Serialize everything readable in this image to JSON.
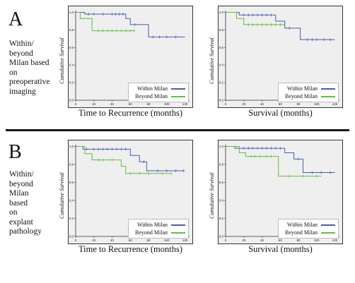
{
  "figure": {
    "panel_a_letter": "A",
    "panel_b_letter": "B",
    "row_a_label": "Within/\nbeyond\nMilan based\non\npreoperative\nimaging",
    "row_b_label": "Within/\nbeyond\nMilan\nbased\non\nexplant\npathology"
  },
  "colors": {
    "within": "#4a5bb0",
    "beyond": "#5fbf3f"
  },
  "chart_data": [
    {
      "type": "line",
      "step": true,
      "ylabel": "Cumulative Survival",
      "xlabel": "Time to Recurrence  (months)",
      "xticks": [
        "0",
        "20",
        "40",
        "60",
        "80",
        "100",
        "120"
      ],
      "yticks": [
        "0.0",
        "0.2",
        "0.4",
        "0.6",
        "0.8",
        "1.0"
      ],
      "xlim": [
        0,
        125
      ],
      "ylim": [
        0,
        1.02
      ],
      "legend_position": "bottom-right",
      "series": [
        {
          "name": "Within Milan",
          "color_key": "within",
          "steps": [
            [
              0,
              1.0
            ],
            [
              10,
              0.98
            ],
            [
              55,
              0.93
            ],
            [
              60,
              0.86
            ],
            [
              80,
              0.72
            ],
            [
              120,
              0.72
            ]
          ],
          "censors": [
            [
              14,
              0.98
            ],
            [
              20,
              0.98
            ],
            [
              30,
              0.98
            ],
            [
              40,
              0.98
            ],
            [
              44,
              0.98
            ],
            [
              48,
              0.98
            ],
            [
              52,
              0.98
            ],
            [
              65,
              0.86
            ],
            [
              85,
              0.72
            ],
            [
              92,
              0.72
            ],
            [
              100,
              0.72
            ],
            [
              110,
              0.72
            ]
          ]
        },
        {
          "name": "Beyond Milan",
          "color_key": "beyond",
          "steps": [
            [
              0,
              1.0
            ],
            [
              5,
              0.93
            ],
            [
              18,
              0.79
            ],
            [
              65,
              0.79
            ]
          ],
          "censors": [
            [
              25,
              0.79
            ],
            [
              30,
              0.79
            ],
            [
              35,
              0.79
            ],
            [
              40,
              0.79
            ],
            [
              45,
              0.79
            ],
            [
              50,
              0.79
            ],
            [
              55,
              0.79
            ],
            [
              60,
              0.79
            ],
            [
              64,
              0.79
            ]
          ]
        }
      ]
    },
    {
      "type": "line",
      "step": true,
      "ylabel": "Cumulative Survival",
      "xlabel": "Survival  (months)",
      "xticks": [
        "0",
        "20",
        "40",
        "60",
        "80",
        "100",
        "120"
      ],
      "yticks": [
        "0.0",
        "0.2",
        "0.4",
        "0.6",
        "0.8",
        "1.0"
      ],
      "xlim": [
        0,
        125
      ],
      "ylim": [
        0,
        1.02
      ],
      "legend_position": "bottom-right",
      "series": [
        {
          "name": "Within Milan",
          "color_key": "within",
          "steps": [
            [
              0,
              1.0
            ],
            [
              15,
              0.97
            ],
            [
              55,
              0.9
            ],
            [
              65,
              0.82
            ],
            [
              82,
              0.69
            ],
            [
              120,
              0.69
            ]
          ],
          "censors": [
            [
              20,
              0.97
            ],
            [
              25,
              0.97
            ],
            [
              30,
              0.97
            ],
            [
              35,
              0.97
            ],
            [
              40,
              0.97
            ],
            [
              45,
              0.97
            ],
            [
              50,
              0.97
            ],
            [
              70,
              0.82
            ],
            [
              90,
              0.69
            ],
            [
              95,
              0.69
            ],
            [
              100,
              0.69
            ],
            [
              108,
              0.69
            ],
            [
              115,
              0.69
            ]
          ]
        },
        {
          "name": "Beyond Milan",
          "color_key": "beyond",
          "steps": [
            [
              0,
              1.0
            ],
            [
              12,
              0.93
            ],
            [
              20,
              0.86
            ],
            [
              65,
              0.86
            ]
          ],
          "censors": [
            [
              25,
              0.86
            ],
            [
              30,
              0.86
            ],
            [
              35,
              0.86
            ],
            [
              40,
              0.86
            ],
            [
              45,
              0.86
            ],
            [
              50,
              0.86
            ],
            [
              55,
              0.86
            ],
            [
              60,
              0.86
            ]
          ]
        }
      ]
    },
    {
      "type": "line",
      "step": true,
      "ylabel": "Cumulative Survival",
      "xlabel": "Time to Recurrence  (months)",
      "xticks": [
        "0",
        "20",
        "40",
        "60",
        "80",
        "100",
        "120"
      ],
      "yticks": [
        "0.0",
        "0.2",
        "0.4",
        "0.6",
        "0.8",
        "1.0"
      ],
      "xlim": [
        0,
        125
      ],
      "ylim": [
        0,
        1.02
      ],
      "legend_position": "bottom-right",
      "series": [
        {
          "name": "Within Milan",
          "color_key": "within",
          "steps": [
            [
              0,
              1.0
            ],
            [
              8,
              0.97
            ],
            [
              60,
              0.9
            ],
            [
              70,
              0.83
            ],
            [
              78,
              0.73
            ],
            [
              120,
              0.73
            ]
          ],
          "censors": [
            [
              12,
              0.97
            ],
            [
              20,
              0.97
            ],
            [
              25,
              0.97
            ],
            [
              30,
              0.97
            ],
            [
              35,
              0.97
            ],
            [
              40,
              0.97
            ],
            [
              45,
              0.97
            ],
            [
              50,
              0.97
            ],
            [
              55,
              0.97
            ],
            [
              75,
              0.83
            ],
            [
              90,
              0.73
            ],
            [
              100,
              0.73
            ],
            [
              110,
              0.73
            ],
            [
              118,
              0.73
            ]
          ]
        },
        {
          "name": "Beyond Milan",
          "color_key": "beyond",
          "steps": [
            [
              0,
              1.0
            ],
            [
              10,
              0.92
            ],
            [
              18,
              0.85
            ],
            [
              50,
              0.78
            ],
            [
              55,
              0.7
            ],
            [
              105,
              0.7
            ]
          ],
          "censors": [
            [
              25,
              0.85
            ],
            [
              30,
              0.85
            ],
            [
              40,
              0.85
            ],
            [
              60,
              0.7
            ],
            [
              70,
              0.7
            ],
            [
              80,
              0.7
            ],
            [
              95,
              0.7
            ],
            [
              105,
              0.7
            ]
          ]
        }
      ]
    },
    {
      "type": "line",
      "step": true,
      "ylabel": "Cumulative Survival",
      "xlabel": "Survival  (months)",
      "xticks": [
        "0",
        "20",
        "40",
        "60",
        "80",
        "100",
        "120"
      ],
      "yticks": [
        "0.0",
        "0.2",
        "0.4",
        "0.6",
        "0.8",
        "1.0"
      ],
      "xlim": [
        0,
        125
      ],
      "ylim": [
        0,
        1.02
      ],
      "legend_position": "bottom-right",
      "series": [
        {
          "name": "Within Milan",
          "color_key": "within",
          "steps": [
            [
              0,
              1.0
            ],
            [
              10,
              0.98
            ],
            [
              65,
              0.93
            ],
            [
              75,
              0.86
            ],
            [
              85,
              0.71
            ],
            [
              120,
              0.71
            ]
          ],
          "censors": [
            [
              20,
              0.98
            ],
            [
              25,
              0.98
            ],
            [
              30,
              0.98
            ],
            [
              35,
              0.98
            ],
            [
              40,
              0.98
            ],
            [
              45,
              0.98
            ],
            [
              50,
              0.98
            ],
            [
              55,
              0.98
            ],
            [
              60,
              0.98
            ],
            [
              80,
              0.86
            ],
            [
              95,
              0.71
            ],
            [
              105,
              0.71
            ],
            [
              115,
              0.71
            ]
          ]
        },
        {
          "name": "Beyond Milan",
          "color_key": "beyond",
          "steps": [
            [
              0,
              1.0
            ],
            [
              15,
              0.93
            ],
            [
              22,
              0.89
            ],
            [
              55,
              0.89
            ],
            [
              58,
              0.67
            ],
            [
              105,
              0.67
            ]
          ],
          "censors": [
            [
              28,
              0.89
            ],
            [
              32,
              0.89
            ],
            [
              38,
              0.89
            ],
            [
              45,
              0.89
            ],
            [
              50,
              0.89
            ],
            [
              70,
              0.67
            ],
            [
              85,
              0.67
            ],
            [
              100,
              0.67
            ]
          ]
        }
      ]
    }
  ]
}
